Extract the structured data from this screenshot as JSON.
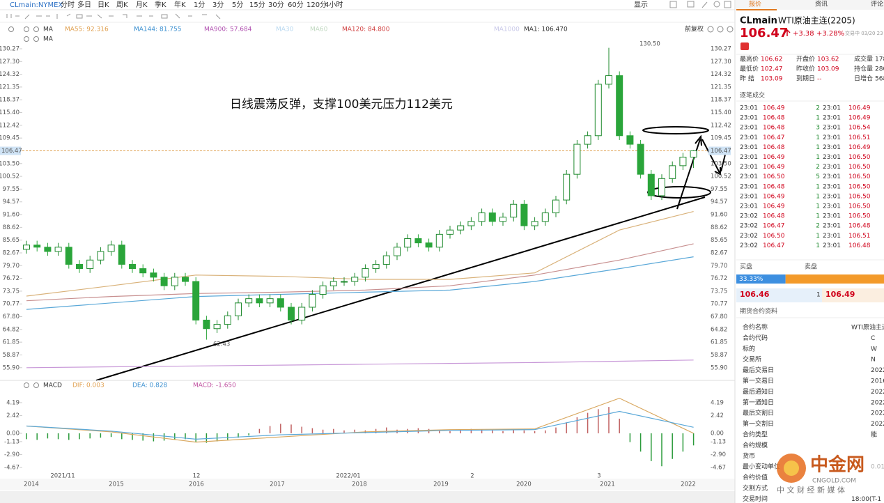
{
  "toolbar": {
    "symbol": "CLmain:NYMEX",
    "items": [
      "分时",
      "多日",
      "日K",
      "周K",
      "月K",
      "季K",
      "年K",
      "1分",
      "3分",
      "5分",
      "15分",
      "30分",
      "60分",
      "120分",
      "4小时"
    ],
    "display": "显示"
  },
  "chart_data": [
    {
      "type": "candlestick",
      "indicator_label": "MA",
      "adjust": "前复权",
      "annotation": "日线震荡反弹，支撑100美元压力112美元",
      "high_label": "130.50",
      "low_label": "62.43",
      "current_price": 106.47,
      "ylim": [
        53.1,
        131.57
      ],
      "yticks": [
        130.27,
        {
          "value": 127.3,
          "label": "127.30"
        },
        124.32,
        121.35,
        118.37,
        {
          "value": 115.4,
          "label": "115.40"
        },
        112.42,
        109.45,
        106.47,
        {
          "value": 103.5,
          "label": "103.50"
        },
        100.52,
        97.55,
        94.57,
        {
          "value": 91.6,
          "label": "91.60"
        },
        88.62,
        85.65,
        82.67,
        {
          "value": 79.7,
          "label": "79.70"
        },
        76.72,
        73.75,
        70.77,
        {
          "value": 67.8,
          "label": "67.80"
        },
        64.82,
        61.85,
        58.87,
        {
          "value": 55.9,
          "label": "55.90"
        }
      ],
      "x_labels": [
        "2014",
        "2015",
        "2016",
        "2017",
        "2018",
        "2019",
        "2020",
        "2021",
        "2022"
      ],
      "up_color": "#1f8a2e",
      "down_color": "#2aa53a",
      "open": [
        83.5,
        84.5,
        84,
        83,
        84,
        80,
        79,
        81,
        83,
        84.5,
        80,
        79,
        78,
        77,
        75,
        77,
        76,
        67,
        65,
        66,
        68,
        71,
        72,
        71,
        72,
        70,
        67,
        70,
        73,
        75,
        76,
        76,
        77,
        79,
        80,
        82,
        84,
        86,
        85,
        84,
        87,
        88,
        89,
        90,
        92,
        90,
        91,
        94,
        89,
        90,
        92,
        95,
        101,
        108,
        110,
        122,
        124,
        110,
        108,
        101,
        96,
        100,
        103,
        105
      ],
      "high": [
        85.5,
        85.5,
        85,
        85,
        85,
        81,
        82,
        84,
        85.5,
        85.5,
        81,
        80,
        79,
        78,
        78,
        78,
        77,
        68,
        67,
        69,
        72,
        73,
        73,
        73,
        73,
        71,
        71,
        74,
        76,
        77,
        77,
        78,
        80,
        81,
        83,
        85,
        87,
        87,
        86,
        88,
        89,
        90,
        91,
        93,
        93,
        92,
        95,
        95,
        91,
        93,
        96,
        102,
        109,
        111,
        123,
        130.5,
        125,
        111,
        109,
        102,
        101,
        104,
        106,
        106.62
      ],
      "low": [
        82.5,
        83,
        82,
        82,
        79,
        78,
        78,
        80,
        82,
        79,
        78,
        77,
        76,
        74,
        74,
        75,
        66,
        62.43,
        64,
        65,
        67,
        70,
        70,
        70,
        69,
        66,
        66,
        69,
        72,
        74,
        75,
        75,
        76,
        78,
        79,
        81,
        83,
        84,
        83,
        83,
        86,
        87,
        88,
        89,
        89,
        89,
        90,
        88,
        88,
        89,
        91,
        94,
        100,
        107,
        109,
        121,
        109,
        107,
        100,
        95,
        95,
        99,
        102,
        102.47
      ],
      "close": [
        84.5,
        84,
        83,
        84,
        80,
        79,
        81,
        83,
        84.5,
        80,
        79,
        78,
        77,
        75,
        77,
        76,
        67,
        65,
        66,
        68,
        71,
        72,
        71,
        72,
        70,
        67,
        70,
        73,
        75,
        76,
        76,
        77,
        79,
        80,
        82,
        84,
        86,
        85,
        84,
        87,
        88,
        89,
        90,
        92,
        90,
        91,
        94,
        89,
        90,
        92,
        95,
        101,
        108,
        110,
        122,
        124,
        110,
        108,
        101,
        96,
        100,
        103,
        105,
        106.47
      ],
      "series": [
        {
          "name": "MA55: 92.316",
          "color": "#e0a050",
          "line_color": "#d9b27a",
          "x": [
            0,
            8,
            16,
            24,
            32,
            40,
            48,
            56,
            63
          ],
          "values": [
            72.6,
            75,
            77.5,
            77.2,
            76.5,
            76.5,
            78,
            88,
            92.316
          ]
        },
        {
          "name": "MA144: 81.755",
          "color": "#3a8fd0",
          "line_color": "#5aa8d8",
          "x": [
            0,
            8,
            16,
            24,
            32,
            40,
            48,
            56,
            63
          ],
          "values": [
            69.5,
            71,
            72.5,
            73,
            73.5,
            74,
            76,
            79,
            81.755
          ]
        },
        {
          "name": "MA900: 57.684",
          "color": "#b050b0",
          "line_color": "#c898d8",
          "x": [
            0,
            8,
            16,
            24,
            32,
            40,
            48,
            56,
            63
          ],
          "values": [
            55.9,
            56.1,
            56.3,
            56.5,
            56.7,
            56.9,
            57.1,
            57.4,
            57.684
          ]
        },
        {
          "name": "MA120: 84.800",
          "color": "#d04040",
          "line_color": "#c89090",
          "x": [
            0,
            8,
            16,
            24,
            32,
            40,
            48,
            56,
            63
          ],
          "values": [
            71.5,
            72.5,
            73.2,
            73.5,
            74,
            75,
            77.5,
            81,
            84.8
          ]
        }
      ],
      "other_legend": [
        {
          "name": "MA30",
          "color": "#b8d8f0"
        },
        {
          "name": "MA60",
          "color": "#c0d8c0"
        },
        {
          "name": "MA1000",
          "color": "#c8c8e8"
        },
        {
          "name": "MA1: 106.470",
          "color": "#333333"
        }
      ]
    },
    {
      "type": "macd",
      "title": "MACD",
      "ylim": [
        -6.0,
        5.9
      ],
      "yticks": [
        4.19,
        2.42,
        {
          "value": 0,
          "label": "0.00"
        },
        -1.13,
        {
          "value": -2.9,
          "label": "-2.90"
        },
        -4.67
      ],
      "x_labels": [
        "2021/11",
        "12",
        "2022/01",
        "2",
        "3"
      ],
      "series": [
        {
          "name": "DIF: 0.003",
          "color": "#e0a050",
          "line_color": "#d9a860",
          "x": [
            0,
            8,
            16,
            24,
            32,
            40,
            48,
            56,
            63
          ],
          "values": [
            1.0,
            0.2,
            -1.2,
            -0.5,
            0.2,
            0.5,
            0.6,
            4.8,
            0.003
          ]
        },
        {
          "name": "DEA: 0.828",
          "color": "#3a8fd0",
          "line_color": "#5aa8d8",
          "x": [
            0,
            8,
            16,
            24,
            32,
            40,
            48,
            56,
            63
          ],
          "values": [
            1.0,
            0.3,
            -0.8,
            -0.2,
            0.1,
            0.4,
            0.5,
            3.0,
            0.828
          ]
        }
      ],
      "histogram": {
        "name": "MACD: -1.650",
        "color": "#c050a0",
        "up_color": "#c06060",
        "down_color": "#2a9a3a",
        "values": [
          -0.8,
          -0.9,
          -0.7,
          -0.8,
          -0.9,
          -0.8,
          -0.7,
          -0.6,
          -0.5,
          -0.8,
          -0.9,
          -1.0,
          -1.1,
          -1.0,
          -0.9,
          -0.8,
          -1.2,
          -1.3,
          -1.1,
          -0.9,
          -0.6,
          -0.3,
          0.6,
          1.0,
          1.3,
          1.2,
          0.9,
          0.7,
          0.5,
          0.6,
          0.4,
          0.5,
          0.4,
          0.6,
          0.8,
          0.5,
          0.6,
          0.7,
          0.6,
          0.4,
          0.3,
          0.5,
          0.6,
          0.5,
          0.4,
          0.3,
          0.5,
          0.4,
          0.3,
          0.4,
          0.8,
          1.5,
          2.2,
          2.8,
          3.3,
          3.6,
          2.0,
          -1.2,
          -2.5,
          -3.8,
          -4.5,
          -3.5,
          -2.5,
          -1.65
        ]
      }
    }
  ],
  "quote": {
    "tabs": [
      "报价",
      "资讯",
      "评论"
    ],
    "code": "CLmain",
    "name": "WTI原油主连(2205)",
    "price": "106.47",
    "change": "+3.38",
    "change_pct": "+3.28%",
    "status": "交易中 03/20 23",
    "stats": [
      [
        "最高价",
        "106.62"
      ],
      [
        "开盘价",
        "103.62"
      ],
      [
        "成交量",
        "178"
      ],
      [
        "最低价",
        "102.47"
      ],
      [
        "昨收价",
        "103.09"
      ],
      [
        "持仓量",
        "280"
      ],
      [
        "昨 结",
        "103.09"
      ],
      [
        "到期日",
        "--"
      ],
      [
        "日增仓",
        "568"
      ]
    ],
    "trades_title": "逐笔成交",
    "trades": [
      [
        "23:01",
        "106.49",
        "2",
        "23:01",
        "106.49"
      ],
      [
        "23:01",
        "106.48",
        "1",
        "23:01",
        "106.49"
      ],
      [
        "23:01",
        "106.48",
        "3",
        "23:01",
        "106.54"
      ],
      [
        "23:01",
        "106.47",
        "1",
        "23:01",
        "106.51"
      ],
      [
        "23:01",
        "106.48",
        "1",
        "23:01",
        "106.49"
      ],
      [
        "23:01",
        "106.49",
        "1",
        "23:01",
        "106.50"
      ],
      [
        "23:01",
        "106.49",
        "2",
        "23:01",
        "106.50"
      ],
      [
        "23:01",
        "106.50",
        "5",
        "23:01",
        "106.50"
      ],
      [
        "23:01",
        "106.48",
        "1",
        "23:01",
        "106.50"
      ],
      [
        "23:01",
        "106.49",
        "1",
        "23:01",
        "106.50"
      ],
      [
        "23:01",
        "106.49",
        "1",
        "23:01",
        "106.50"
      ],
      [
        "23:02",
        "106.48",
        "1",
        "23:01",
        "106.50"
      ],
      [
        "23:02",
        "106.47",
        "2",
        "23:01",
        "106.48"
      ],
      [
        "23:02",
        "106.50",
        "1",
        "23:01",
        "106.51"
      ],
      [
        "23:02",
        "106.47",
        "1",
        "23:01",
        "106.48"
      ]
    ],
    "book": {
      "buy_title": "买盘",
      "sell_title": "卖盘",
      "buy_ratio": {
        "value": 33.33,
        "label": "33.33%"
      },
      "bid": "106.46",
      "qty": "1",
      "ask": "106.49"
    },
    "contract_title": "期货合约资料",
    "contract": [
      {
        "label": "合约名称",
        "value": "WTI原油主连"
      },
      {
        "label": "合约代码",
        "value": "C"
      },
      {
        "label": "标的",
        "value": "W"
      },
      {
        "label": "交易所",
        "value": "N"
      },
      {
        "label": "最后交易日",
        "value": "2022"
      },
      {
        "label": "第一交易日",
        "value": "2016"
      },
      {
        "label": "最后通知日",
        "value": "2022"
      },
      {
        "label": "第一通知日",
        "value": "2022"
      },
      {
        "label": "最后交割日",
        "value": "2022"
      },
      {
        "label": "第一交割日",
        "value": "2022"
      },
      {
        "label": "合约类型",
        "value": "能"
      },
      {
        "label": "合约规模"
      },
      {
        "label": "货币"
      },
      {
        "label": "最小变动单位",
        "value": "0.01"
      },
      {
        "label": "合约价值"
      },
      {
        "label": "交割方式"
      },
      {
        "label": "交易时间",
        "value": "18:00(T-1"
      }
    ]
  },
  "watermark": {
    "brand": "中金网",
    "site": "CNGOLD.COM",
    "slogan": "中 文 财 经 新 媒 体"
  }
}
